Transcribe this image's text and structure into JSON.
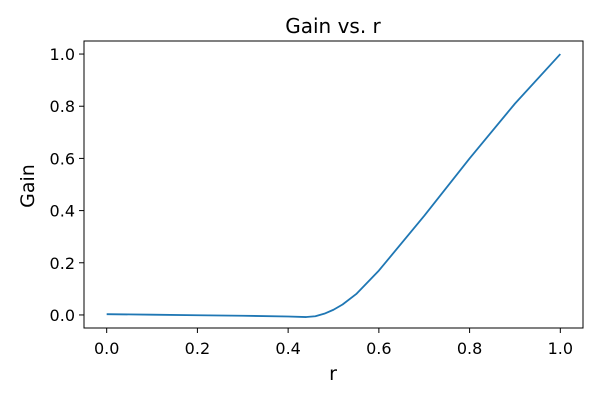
{
  "chart_data": {
    "type": "line",
    "title": "Gain vs. r",
    "xlabel": "r",
    "ylabel": "Gain",
    "xlim": [
      -0.05,
      1.05
    ],
    "ylim": [
      -0.05,
      1.05
    ],
    "x_ticks": [
      "0.0",
      "0.2",
      "0.4",
      "0.6",
      "0.8",
      "1.0"
    ],
    "y_ticks": [
      "0.0",
      "0.2",
      "0.4",
      "0.6",
      "0.8",
      "1.0"
    ],
    "grid": false,
    "series": [
      {
        "color": "#1f77b4",
        "x": [
          0.0,
          0.1,
          0.2,
          0.3,
          0.4,
          0.44,
          0.46,
          0.48,
          0.5,
          0.52,
          0.55,
          0.6,
          0.7,
          0.8,
          0.9,
          1.0
        ],
        "y": [
          0.003,
          0.001,
          -0.001,
          -0.003,
          -0.006,
          -0.008,
          -0.005,
          0.005,
          0.02,
          0.04,
          0.08,
          0.17,
          0.38,
          0.6,
          0.81,
          1.0
        ]
      }
    ]
  }
}
